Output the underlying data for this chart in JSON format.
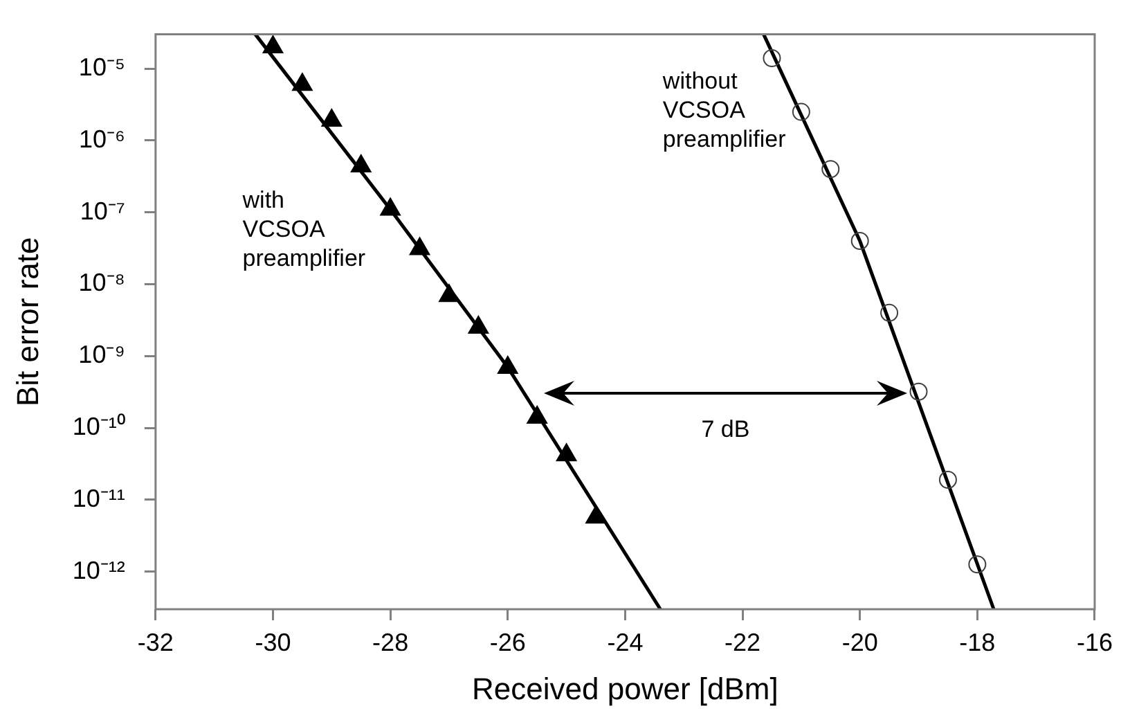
{
  "chart_data": {
    "type": "scatter",
    "xlabel": "Received power [dBm]",
    "ylabel": "Bit error rate",
    "log": "y",
    "grid": false,
    "legend": false,
    "xlim": [
      -32,
      -16
    ],
    "xticks": [
      -32,
      -30,
      -28,
      -26,
      -24,
      -22,
      -20,
      -18,
      -16
    ],
    "ylim": [
      3e-13,
      3e-05
    ],
    "yticks": [
      {
        "value": 1e-12,
        "label": "10⁻¹²"
      },
      {
        "value": 1e-11,
        "label": "10⁻¹¹"
      },
      {
        "value": 1e-10,
        "label": "10⁻¹⁰"
      },
      {
        "value": 1e-09,
        "label": "10⁻⁹"
      },
      {
        "value": 1e-08,
        "label": "10⁻⁸"
      },
      {
        "value": 1e-07,
        "label": "10⁻⁷"
      },
      {
        "value": 1e-06,
        "label": "10⁻⁶"
      },
      {
        "value": 1e-05,
        "label": "10⁻⁵"
      }
    ],
    "annotations": [
      "7 dB"
    ],
    "series": [
      {
        "name": "with VCSOA preamplifier",
        "type": "scatter",
        "marker": "triangle",
        "color": "#000000",
        "x": [
          -30,
          -29.5,
          -29,
          -28.5,
          -28,
          -27.5,
          -27,
          -26.5,
          -26,
          -25.5,
          -25,
          -24.5
        ],
        "values": [
          2e-05,
          6e-06,
          1.9e-06,
          4.4e-07,
          1.1e-07,
          3.1e-08,
          6.9e-09,
          2.5e-09,
          6.9e-10,
          1.4e-10,
          4.2e-11,
          5.7e-12
        ]
      },
      {
        "type": "line",
        "marker": "none",
        "color": "#000000",
        "x": [
          -30.3,
          -28,
          -26,
          -23.4
        ],
        "values": [
          3e-05,
          1.1e-07,
          7e-10,
          3e-13
        ]
      },
      {
        "name": "without VCSOA preamplifier",
        "type": "scatter",
        "marker": "circle",
        "color": "#404040",
        "x": [
          -21.5,
          -21,
          -20.5,
          -20,
          -19.5,
          -19,
          -18.5,
          -18
        ],
        "values": [
          1.4e-05,
          2.5e-06,
          4e-07,
          4e-08,
          4e-09,
          3.2e-10,
          1.9e-11,
          1.26e-12
        ]
      },
      {
        "type": "line",
        "marker": "none",
        "color": "#000000",
        "x": [
          -21.64,
          -20,
          -17.72
        ],
        "values": [
          3e-05,
          4e-08,
          3e-13
        ]
      }
    ]
  }
}
